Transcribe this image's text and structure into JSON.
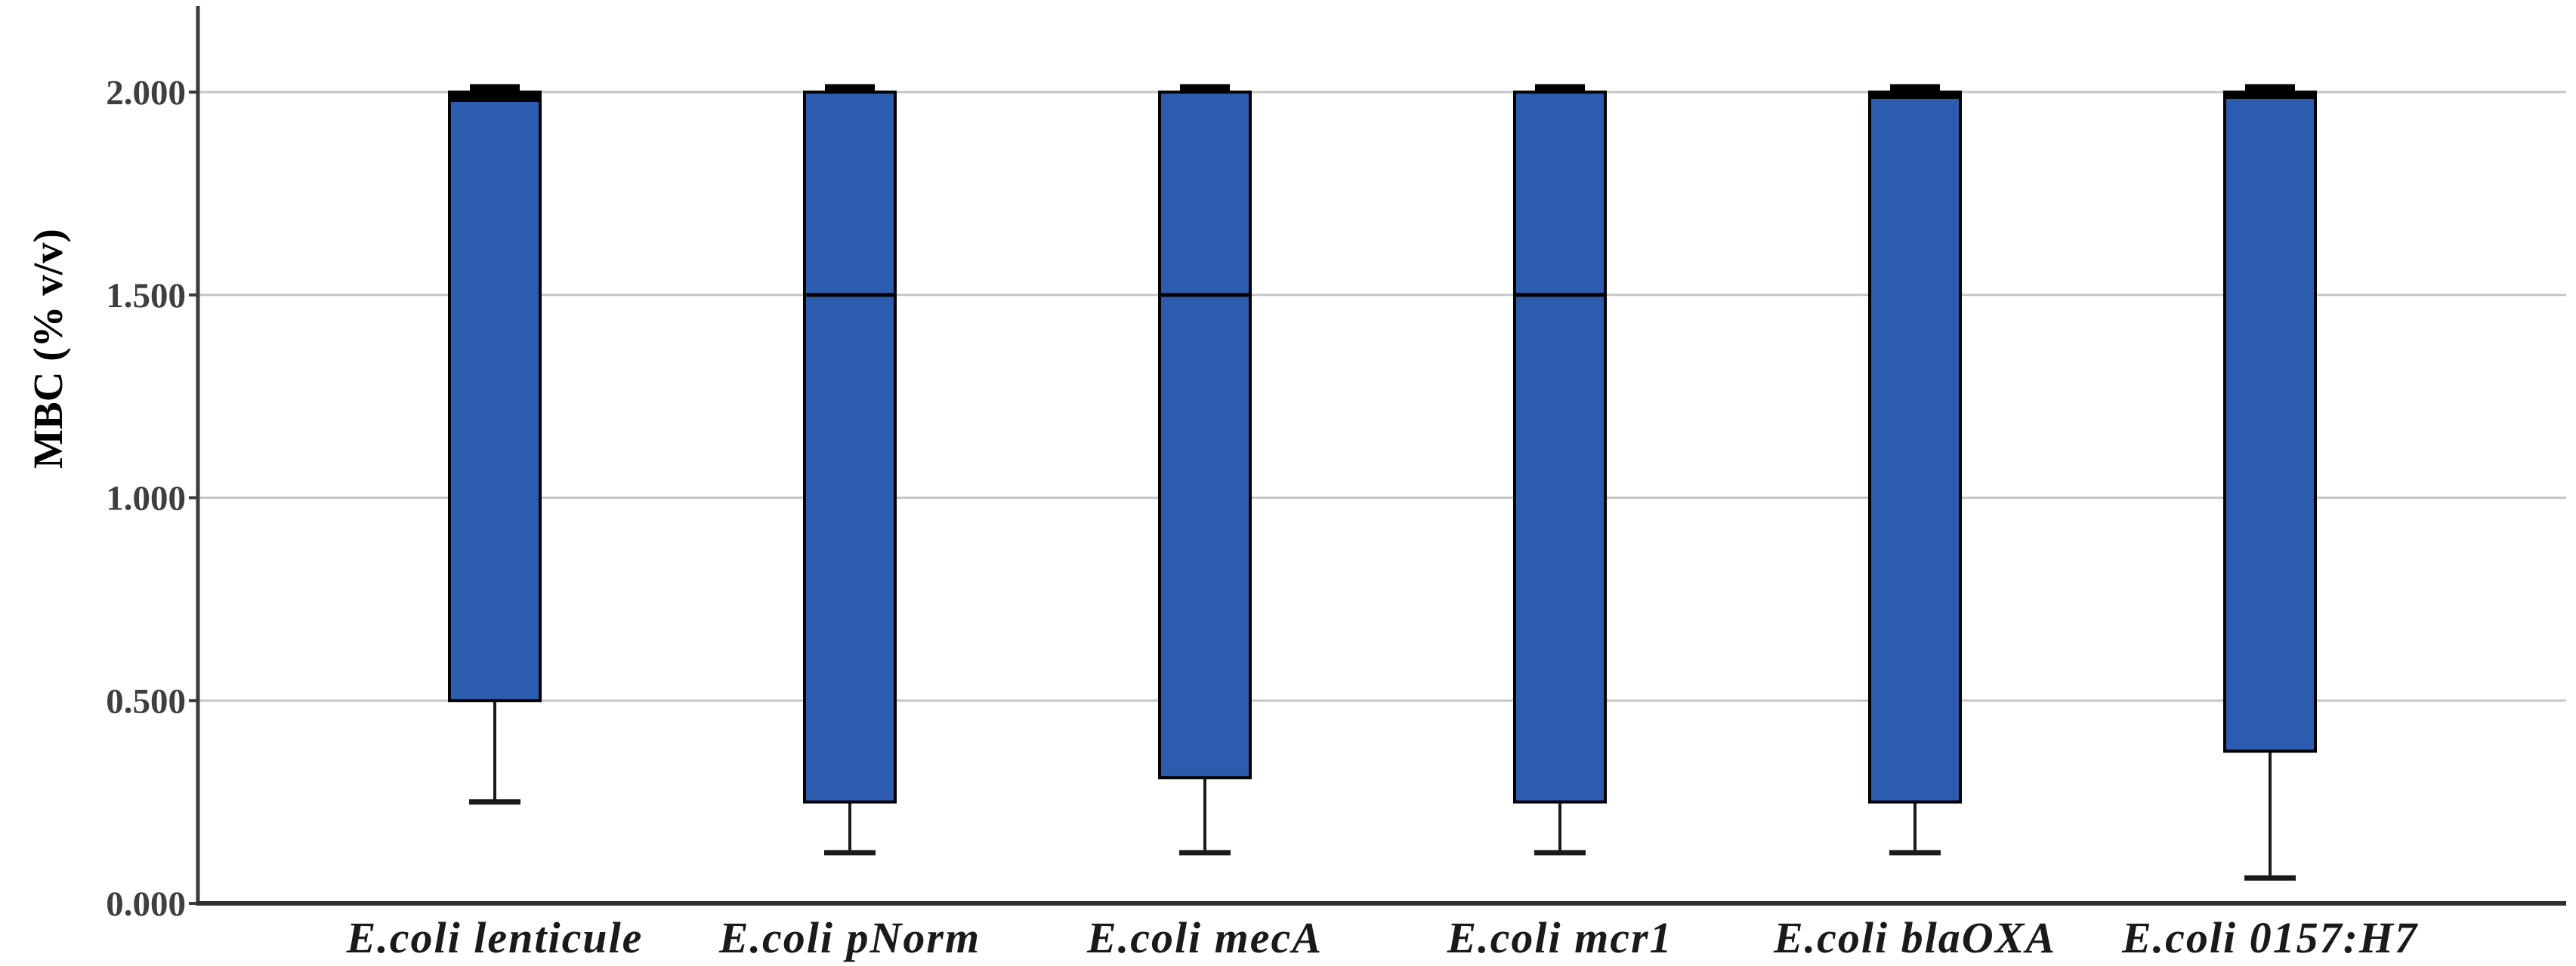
{
  "chart_data": {
    "type": "box",
    "title": "",
    "ylabel": "MBC (% v/v)",
    "xlabel": "",
    "ylim": [
      0,
      2.21
    ],
    "grid": true,
    "legend": "none",
    "yticks": [
      {
        "value": 0.0,
        "label": "0.000"
      },
      {
        "value": 0.5,
        "label": "0.500"
      },
      {
        "value": 1.0,
        "label": "1.000"
      },
      {
        "value": 1.5,
        "label": "1.500"
      },
      {
        "value": 2.0,
        "label": "2.000"
      }
    ],
    "categories": [
      "E.coli lenticule",
      "E.coli pNorm",
      "E.coli mecA",
      "E.coli mcr1",
      "E.coli blaOXA",
      "E.coli 0157:H7"
    ],
    "series": [
      {
        "label": "E.coli lenticule",
        "q1": 0.5,
        "median": 2.0,
        "q3": 2.0,
        "whisker_low": 0.25,
        "whisker_high": 2.0
      },
      {
        "label": "E.coli pNorm",
        "q1": 0.25,
        "median": 1.5,
        "q3": 2.0,
        "whisker_low": 0.125,
        "whisker_high": 2.0
      },
      {
        "label": "E.coli mecA",
        "q1": 0.31,
        "median": 1.5,
        "q3": 2.0,
        "whisker_low": 0.125,
        "whisker_high": 2.0
      },
      {
        "label": "E.coli mcr1",
        "q1": 0.25,
        "median": 1.5,
        "q3": 2.0,
        "whisker_low": 0.125,
        "whisker_high": 2.0
      },
      {
        "label": "E.coli blaOXA",
        "q1": 0.25,
        "median": 2.0,
        "q3": 2.0,
        "whisker_low": 0.125,
        "whisker_high": 2.0
      },
      {
        "label": "E.coli 0157:H7",
        "q1": 0.375,
        "median": 2.0,
        "q3": 2.0,
        "whisker_low": 0.0625,
        "whisker_high": 2.0
      }
    ],
    "colors": {
      "box_fill": "#2B5CB0",
      "box_stroke": "#000000",
      "whisker": "#1A1A1A",
      "gridline": "#C6C6C6",
      "axis": "#3B3B3B",
      "tick_text": "#3F3F3F",
      "label_text": "#1A1A1A"
    }
  }
}
